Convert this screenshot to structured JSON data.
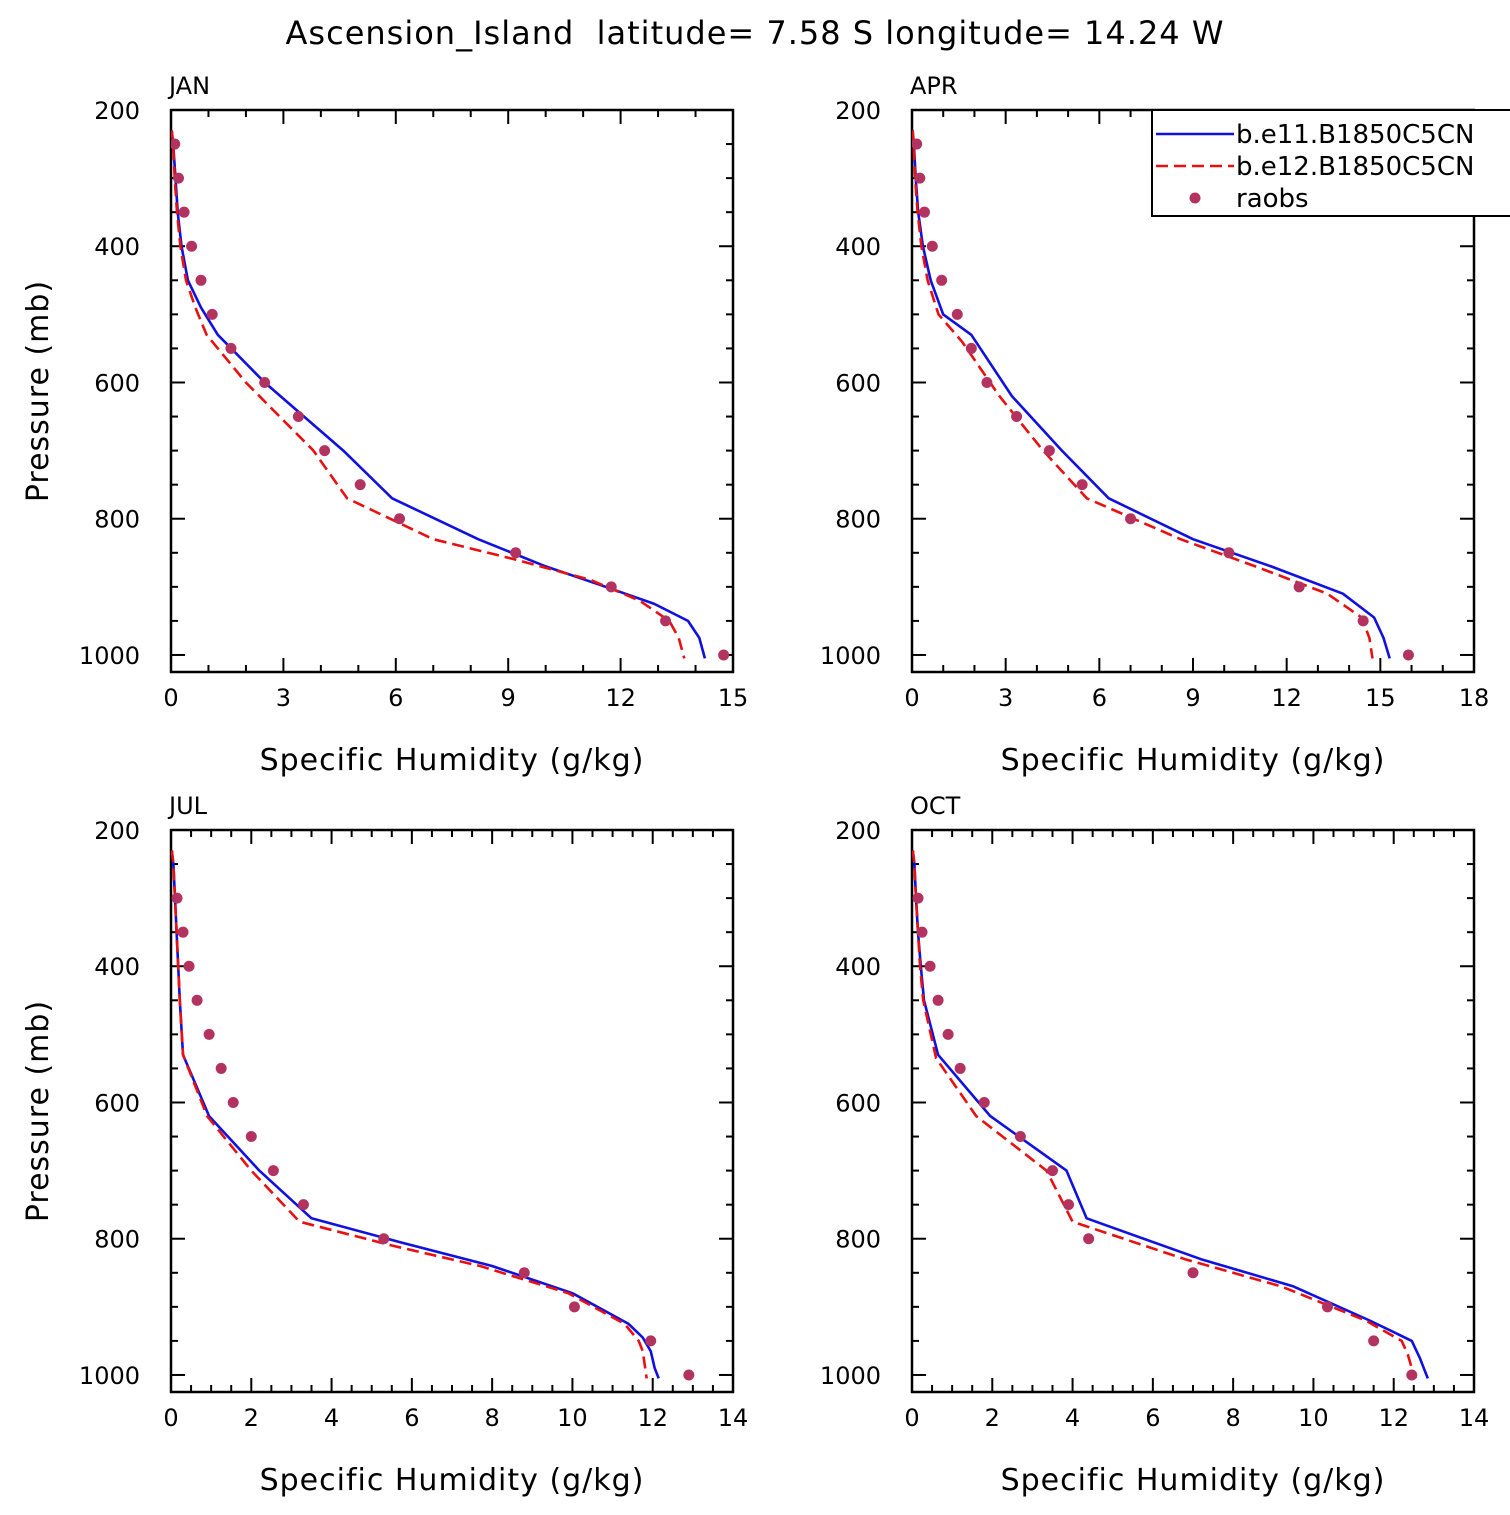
{
  "figure": {
    "title": "Ascension_Island  latitude= 7.58 S longitude= 14.24 W",
    "legend": {
      "placement": "top-right of APR panel",
      "entries": [
        {
          "label": "b.e11.B1850C5CN",
          "style": "solid line",
          "color": "#1010e0"
        },
        {
          "label": "b.e12.B1850C5CN",
          "style": "dashed line",
          "color": "#e81010"
        },
        {
          "label": "raobs",
          "style": "dot",
          "color": "#b33360"
        }
      ]
    }
  },
  "chart_data": [
    {
      "type": "line",
      "panel": "JAN",
      "title": "JAN",
      "xlabel": "Specific Humidity (g/kg)",
      "ylabel": "Pressure (mb)",
      "xlim": [
        0,
        15
      ],
      "xticks": [
        "0",
        "3",
        "6",
        "9",
        "12",
        "15"
      ],
      "ylim": [
        200,
        1025
      ],
      "yreversed": true,
      "yticks": [
        "200",
        "400",
        "600",
        "800",
        "1000"
      ],
      "series": [
        {
          "name": "b.e11.B1850C5CN",
          "x": [
            0.02,
            0.06,
            0.12,
            0.18,
            0.28,
            0.45,
            0.8,
            1.25,
            2.5,
            4.6,
            5.9,
            8.2,
            10.0,
            11.6,
            12.9,
            13.8,
            14.1,
            14.25
          ],
          "y": [
            230,
            250,
            300,
            350,
            400,
            450,
            490,
            530,
            600,
            700,
            770,
            830,
            870,
            900,
            925,
            950,
            975,
            1005
          ]
        },
        {
          "name": "b.e12.B1850C5CN",
          "x": [
            0.02,
            0.06,
            0.1,
            0.16,
            0.25,
            0.4,
            0.65,
            0.95,
            2.0,
            3.8,
            4.7,
            7.0,
            9.2,
            11.2,
            12.5,
            13.3,
            13.55,
            13.7
          ],
          "y": [
            230,
            250,
            300,
            350,
            400,
            450,
            490,
            530,
            600,
            700,
            770,
            830,
            860,
            890,
            920,
            950,
            975,
            1005
          ]
        },
        {
          "name": "raobs",
          "x": [
            0.1,
            0.2,
            0.35,
            0.55,
            0.8,
            1.1,
            1.6,
            2.5,
            3.4,
            4.1,
            5.05,
            6.1,
            9.2,
            11.75,
            13.2,
            14.75
          ],
          "y": [
            250,
            300,
            350,
            400,
            450,
            500,
            550,
            600,
            650,
            700,
            750,
            800,
            850,
            900,
            950,
            1000
          ]
        }
      ]
    },
    {
      "type": "line",
      "panel": "APR",
      "title": "APR",
      "xlabel": "Specific Humidity (g/kg)",
      "ylabel": "",
      "xlim": [
        0,
        18
      ],
      "xticks": [
        "0",
        "3",
        "6",
        "9",
        "12",
        "15",
        "18"
      ],
      "ylim": [
        200,
        1025
      ],
      "yreversed": true,
      "yticks": [
        "200",
        "400",
        "600",
        "800",
        "1000"
      ],
      "series": [
        {
          "name": "b.e11.B1850C5CN",
          "x": [
            0.02,
            0.06,
            0.12,
            0.2,
            0.35,
            0.6,
            1.0,
            1.9,
            3.2,
            4.8,
            6.3,
            9.0,
            11.5,
            13.8,
            14.8,
            15.1,
            15.3
          ],
          "y": [
            230,
            250,
            300,
            350,
            400,
            450,
            500,
            530,
            620,
            700,
            770,
            830,
            870,
            910,
            945,
            975,
            1005
          ]
        },
        {
          "name": "b.e12.B1850C5CN",
          "x": [
            0.02,
            0.05,
            0.1,
            0.18,
            0.3,
            0.5,
            0.85,
            1.6,
            2.8,
            4.2,
            5.6,
            8.6,
            11.0,
            13.3,
            14.4,
            14.65,
            14.75
          ],
          "y": [
            230,
            250,
            300,
            350,
            400,
            450,
            500,
            540,
            620,
            700,
            770,
            830,
            870,
            910,
            945,
            975,
            1005
          ]
        },
        {
          "name": "raobs",
          "x": [
            0.15,
            0.25,
            0.4,
            0.65,
            0.95,
            1.45,
            1.9,
            2.4,
            3.35,
            4.4,
            5.45,
            7.0,
            10.15,
            12.4,
            14.45,
            15.9
          ],
          "y": [
            250,
            300,
            350,
            400,
            450,
            500,
            550,
            600,
            650,
            700,
            750,
            800,
            850,
            900,
            950,
            1000
          ]
        }
      ]
    },
    {
      "type": "line",
      "panel": "JUL",
      "title": "JUL",
      "xlabel": "Specific Humidity (g/kg)",
      "ylabel": "Pressure (mb)",
      "xlim": [
        0,
        14
      ],
      "xticks": [
        "0",
        "2",
        "4",
        "6",
        "8",
        "10",
        "12",
        "14"
      ],
      "ylim": [
        200,
        1025
      ],
      "yreversed": true,
      "yticks": [
        "200",
        "400",
        "600",
        "800",
        "1000"
      ],
      "series": [
        {
          "name": "b.e11.B1850C5CN",
          "x": [
            0.02,
            0.06,
            0.1,
            0.14,
            0.18,
            0.22,
            0.3,
            0.95,
            2.2,
            3.5,
            5.7,
            8.0,
            10.0,
            11.4,
            11.75,
            11.95,
            12.05,
            12.15
          ],
          "y": [
            230,
            250,
            300,
            350,
            400,
            450,
            530,
            620,
            700,
            770,
            805,
            840,
            880,
            925,
            945,
            965,
            990,
            1005
          ]
        },
        {
          "name": "b.e12.B1850C5CN",
          "x": [
            0.02,
            0.06,
            0.1,
            0.14,
            0.18,
            0.22,
            0.3,
            0.9,
            2.0,
            3.2,
            5.5,
            7.7,
            9.9,
            11.3,
            11.65,
            11.75,
            11.8,
            11.85
          ],
          "y": [
            230,
            250,
            300,
            350,
            400,
            450,
            530,
            620,
            700,
            775,
            810,
            840,
            880,
            925,
            950,
            965,
            985,
            1005
          ]
        },
        {
          "name": "raobs",
          "x": [
            0.15,
            0.3,
            0.45,
            0.65,
            0.95,
            1.25,
            1.55,
            2.0,
            2.55,
            3.3,
            5.3,
            8.8,
            10.05,
            11.95,
            12.9
          ],
          "y": [
            300,
            350,
            400,
            450,
            500,
            550,
            600,
            650,
            700,
            750,
            800,
            850,
            900,
            950,
            1000
          ]
        }
      ]
    },
    {
      "type": "line",
      "panel": "OCT",
      "title": "OCT",
      "xlabel": "Specific Humidity (g/kg)",
      "ylabel": "",
      "xlim": [
        0,
        14
      ],
      "xticks": [
        "0",
        "2",
        "4",
        "6",
        "8",
        "10",
        "12",
        "14"
      ],
      "ylim": [
        200,
        1025
      ],
      "yreversed": true,
      "yticks": [
        "200",
        "400",
        "600",
        "800",
        "1000"
      ],
      "series": [
        {
          "name": "b.e11.B1850C5CN",
          "x": [
            0.02,
            0.06,
            0.1,
            0.15,
            0.22,
            0.3,
            0.65,
            1.95,
            3.85,
            4.35,
            7.2,
            9.5,
            11.4,
            12.45,
            12.65,
            12.75,
            12.85
          ],
          "y": [
            230,
            250,
            300,
            350,
            400,
            450,
            530,
            620,
            700,
            770,
            830,
            870,
            920,
            950,
            975,
            990,
            1005
          ]
        },
        {
          "name": "b.e12.B1850C5CN",
          "x": [
            0.02,
            0.06,
            0.1,
            0.15,
            0.2,
            0.28,
            0.6,
            1.6,
            3.35,
            4.0,
            6.8,
            9.2,
            11.3,
            12.2,
            12.35,
            12.45,
            12.55
          ],
          "y": [
            230,
            250,
            300,
            350,
            400,
            450,
            535,
            620,
            700,
            775,
            830,
            870,
            920,
            950,
            970,
            990,
            1005
          ]
        },
        {
          "name": "raobs",
          "x": [
            0.15,
            0.25,
            0.45,
            0.65,
            0.9,
            1.2,
            1.8,
            2.7,
            3.5,
            3.9,
            4.4,
            7.0,
            10.35,
            11.5,
            12.45
          ],
          "y": [
            300,
            350,
            400,
            450,
            500,
            550,
            600,
            650,
            700,
            750,
            800,
            850,
            900,
            950,
            1000
          ]
        }
      ]
    }
  ]
}
